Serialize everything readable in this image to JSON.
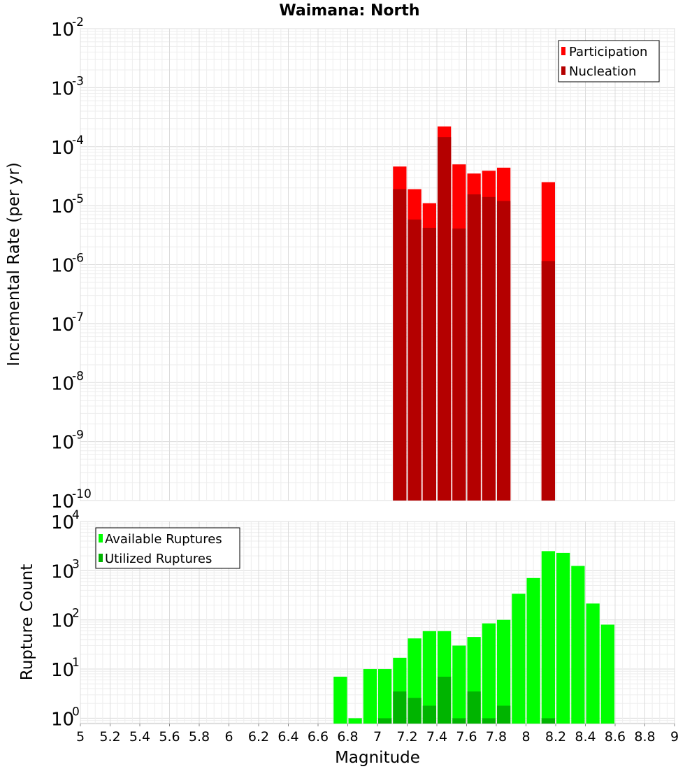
{
  "chart_data": [
    {
      "type": "bar",
      "title": "Waimana: North",
      "xlabel": "",
      "ylabel": "Incremental Rate (per yr)",
      "yscale": "log",
      "ylim": [
        1e-10,
        0.01
      ],
      "xlim": [
        5,
        9
      ],
      "bin_width": 0.1,
      "y_ticks": [
        {
          "base": "10",
          "exp": "-10"
        },
        {
          "base": "10",
          "exp": "-9"
        },
        {
          "base": "10",
          "exp": "-8"
        },
        {
          "base": "10",
          "exp": "-7"
        },
        {
          "base": "10",
          "exp": "-6"
        },
        {
          "base": "10",
          "exp": "-5"
        },
        {
          "base": "10",
          "exp": "-4"
        },
        {
          "base": "10",
          "exp": "-3"
        },
        {
          "base": "10",
          "exp": "-2"
        }
      ],
      "legend": {
        "position": "top-right"
      },
      "series": [
        {
          "name": "Participation",
          "color": "#ff0000",
          "x": [
            7.15,
            7.25,
            7.35,
            7.45,
            7.55,
            7.65,
            7.75,
            7.85,
            8.15
          ],
          "values": [
            4.6e-05,
            1.9e-05,
            1.1e-05,
            0.00022,
            5e-05,
            3.5e-05,
            3.9e-05,
            4.4e-05,
            2.5e-05
          ]
        },
        {
          "name": "Nucleation",
          "color": "#b40000",
          "x": [
            7.15,
            7.25,
            7.35,
            7.45,
            7.55,
            7.65,
            7.75,
            7.85,
            8.15
          ],
          "values": [
            1.9e-05,
            5.8e-06,
            4.2e-06,
            0.000145,
            4.1e-06,
            1.55e-05,
            1.4e-05,
            1.2e-05,
            1.15e-06
          ]
        }
      ]
    },
    {
      "type": "bar",
      "title": "",
      "xlabel": "Magnitude",
      "ylabel": "Rupture Count",
      "yscale": "log",
      "ylim": [
        0.78,
        10000.0
      ],
      "xlim": [
        5,
        9
      ],
      "bin_width": 0.1,
      "x_ticks": [
        "5",
        "5.2",
        "5.4",
        "5.6",
        "5.8",
        "6",
        "6.2",
        "6.4",
        "6.6",
        "6.8",
        "7",
        "7.2",
        "7.4",
        "7.6",
        "7.8",
        "8",
        "8.2",
        "8.4",
        "8.6",
        "8.8",
        "9"
      ],
      "y_ticks": [
        {
          "base": "10",
          "exp": "0"
        },
        {
          "base": "10",
          "exp": "1"
        },
        {
          "base": "10",
          "exp": "2"
        },
        {
          "base": "10",
          "exp": "3"
        },
        {
          "base": "10",
          "exp": "4"
        }
      ],
      "legend": {
        "position": "top-left"
      },
      "series": [
        {
          "name": "Available Ruptures",
          "color": "#00ff00",
          "x": [
            6.75,
            6.85,
            6.95,
            7.05,
            7.15,
            7.25,
            7.35,
            7.45,
            7.55,
            7.65,
            7.75,
            7.85,
            7.95,
            8.05,
            8.15,
            8.25,
            8.35,
            8.45,
            8.55
          ],
          "values": [
            7,
            1,
            10,
            10,
            17,
            42,
            59,
            59,
            30,
            45,
            85,
            100,
            340,
            710,
            2500,
            2300,
            1250,
            215,
            80
          ]
        },
        {
          "name": "Utilized Ruptures",
          "color": "#00b400",
          "x": [
            7.05,
            7.15,
            7.25,
            7.35,
            7.45,
            7.55,
            7.65,
            7.75,
            7.85,
            8.15
          ],
          "values": [
            1,
            3.5,
            2.6,
            1.8,
            7,
            1,
            3.5,
            1,
            1.8,
            1
          ]
        }
      ]
    }
  ]
}
